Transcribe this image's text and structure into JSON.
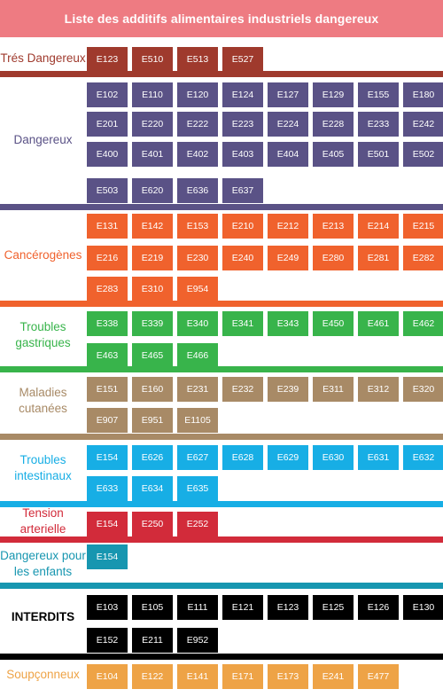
{
  "title": "Liste des additifs alimentaires industriels dangereux",
  "colors": {
    "title_bg": "#ee7b82",
    "tres_dangereux": "#9f3a2d",
    "dangereux": "#5a5286",
    "cancerogenes": "#f0622d",
    "troubles_gastriques": "#38b44b",
    "maladies_cutanees": "#a88a66",
    "troubles_intestinaux": "#17aee5",
    "tension_arterielle": "#d22b3a",
    "dangereux_enfants": "#1796b0",
    "interdits": "#000000",
    "soupconneux": "#eea346"
  },
  "categories": [
    {
      "label": "Trés Dangereux",
      "color_key": "tres_dangereux",
      "rows": [
        [
          "E123",
          "E510",
          "E513",
          "E527"
        ]
      ]
    },
    {
      "label": "Dangereux",
      "color_key": "dangereux",
      "rows": [
        [
          "E102",
          "E110",
          "E120",
          "E124",
          "E127",
          "E129",
          "E155",
          "E180"
        ],
        [
          "E201",
          "E220",
          "E222",
          "E223",
          "E224",
          "E228",
          "E233",
          "E242"
        ],
        [
          "E400",
          "E401",
          "E402",
          "E403",
          "E404",
          "E405",
          "E501",
          "E502"
        ],
        [
          "E503",
          "E620",
          "E636",
          "E637"
        ]
      ]
    },
    {
      "label": "Cancérogènes",
      "color_key": "cancerogenes",
      "rows": [
        [
          "E131",
          "E142",
          "E153",
          "E210",
          "E212",
          "E213",
          "E214",
          "E215"
        ],
        [
          "E216",
          "E219",
          "E230",
          "E240",
          "E249",
          "E280",
          "E281",
          "E282"
        ],
        [
          "E283",
          "E310",
          "E954"
        ]
      ]
    },
    {
      "label": "Troubles gastriques",
      "color_key": "troubles_gastriques",
      "rows": [
        [
          "E338",
          "E339",
          "E340",
          "E341",
          "E343",
          "E450",
          "E461",
          "E462"
        ],
        [
          "E463",
          "E465",
          "E466"
        ]
      ]
    },
    {
      "label": "Maladies cutanées",
      "color_key": "maladies_cutanees",
      "rows": [
        [
          "E151",
          "E160",
          "E231",
          "E232",
          "E239",
          "E311",
          "E312",
          "E320"
        ],
        [
          "E907",
          "E951",
          "E1105"
        ]
      ]
    },
    {
      "label": "Troubles intestinaux",
      "color_key": "troubles_intestinaux",
      "rows": [
        [
          "E154",
          "E626",
          "E627",
          "E628",
          "E629",
          "E630",
          "E631",
          "E632"
        ],
        [
          "E633",
          "E634",
          "E635"
        ]
      ]
    },
    {
      "label": "Tension arterielle",
      "color_key": "tension_arterielle",
      "rows": [
        [
          "E154",
          "E250",
          "E252"
        ]
      ]
    },
    {
      "label": "Dangereux pour les enfants",
      "color_key": "dangereux_enfants",
      "rows": [
        [
          "E154"
        ]
      ]
    },
    {
      "label": "INTERDITS",
      "color_key": "interdits",
      "rows": [
        [
          "E103",
          "E105",
          "E111",
          "E121",
          "E123",
          "E125",
          "E126",
          "E130"
        ],
        [
          "E152",
          "E211",
          "E952"
        ]
      ]
    },
    {
      "label": "Soupçonneux",
      "color_key": "soupconneux",
      "rows": [
        [
          "E104",
          "E122",
          "E141",
          "E171",
          "E173",
          "E241",
          "E477"
        ]
      ]
    }
  ]
}
